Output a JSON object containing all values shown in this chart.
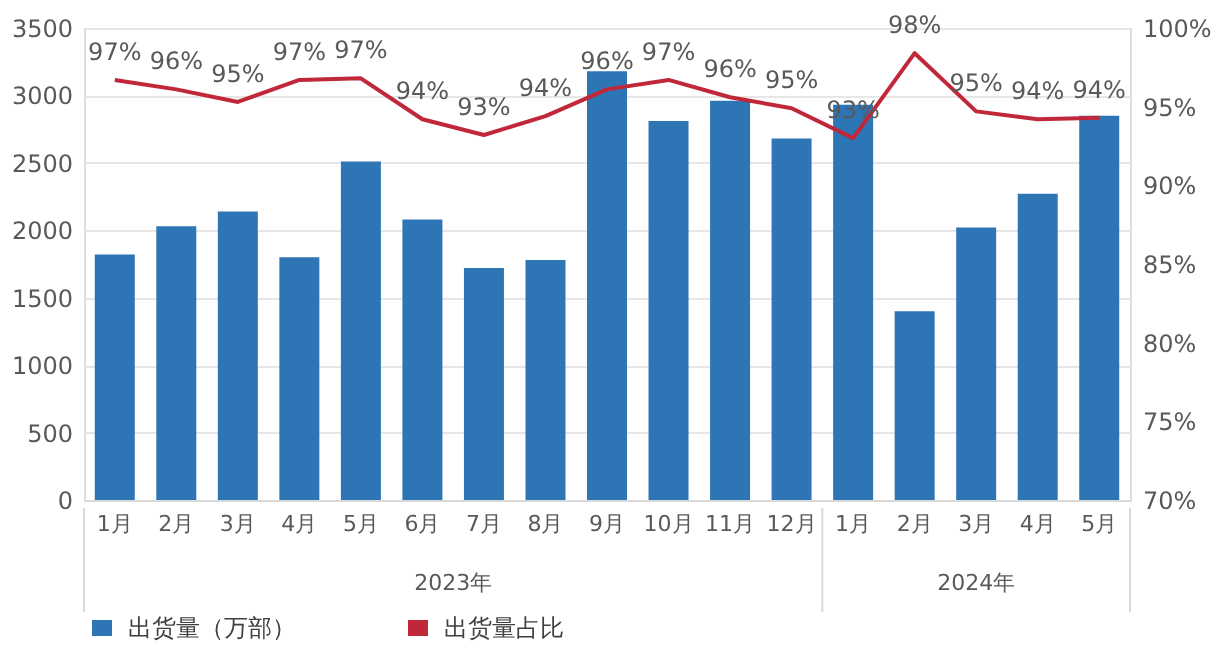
{
  "chart_data": {
    "type": "bar",
    "categories": [
      "1月",
      "2月",
      "3月",
      "4月",
      "5月",
      "6月",
      "7月",
      "8月",
      "9月",
      "10月",
      "11月",
      "12月",
      "1月",
      "2月",
      "3月",
      "4月",
      "5月"
    ],
    "series": [
      {
        "name": "出货量（万部）",
        "color": "#2e75b6",
        "values": [
          1820,
          2030,
          2140,
          1800,
          2510,
          2080,
          1720,
          1780,
          3180,
          2810,
          2960,
          2680,
          2930,
          1400,
          2020,
          2270,
          2850
        ]
      },
      {
        "name": "出货量占比",
        "type": "line",
        "axis": "y2",
        "color": "#c0283a",
        "values": [
          96.7,
          96.1,
          95.3,
          96.7,
          96.8,
          94.2,
          93.2,
          94.4,
          96.1,
          96.7,
          95.6,
          94.9,
          93.0,
          98.4,
          94.7,
          94.2,
          94.3
        ],
        "value_labels": [
          "97%",
          "96%",
          "95%",
          "97%",
          "97%",
          "94%",
          "93%",
          "94%",
          "96%",
          "97%",
          "96%",
          "95%",
          "93%",
          "98%",
          "95%",
          "94%",
          "94%"
        ]
      }
    ],
    "ylim": [
      0,
      3500
    ],
    "yticks": [
      0,
      500,
      1000,
      1500,
      2000,
      2500,
      3000,
      3500
    ],
    "y2lim": [
      70,
      100
    ],
    "y2ticks": [
      {
        "value": 70,
        "label": "70%"
      },
      {
        "value": 75,
        "label": "75%"
      },
      {
        "value": 80,
        "label": "80%"
      },
      {
        "value": 85,
        "label": "85%"
      },
      {
        "value": 90,
        "label": "90%"
      },
      {
        "value": 95,
        "label": "95%"
      },
      {
        "value": 100,
        "label": "100%"
      }
    ],
    "annotations": [
      "2023年",
      "2024年"
    ],
    "grid": "y",
    "legend": "bottom"
  }
}
